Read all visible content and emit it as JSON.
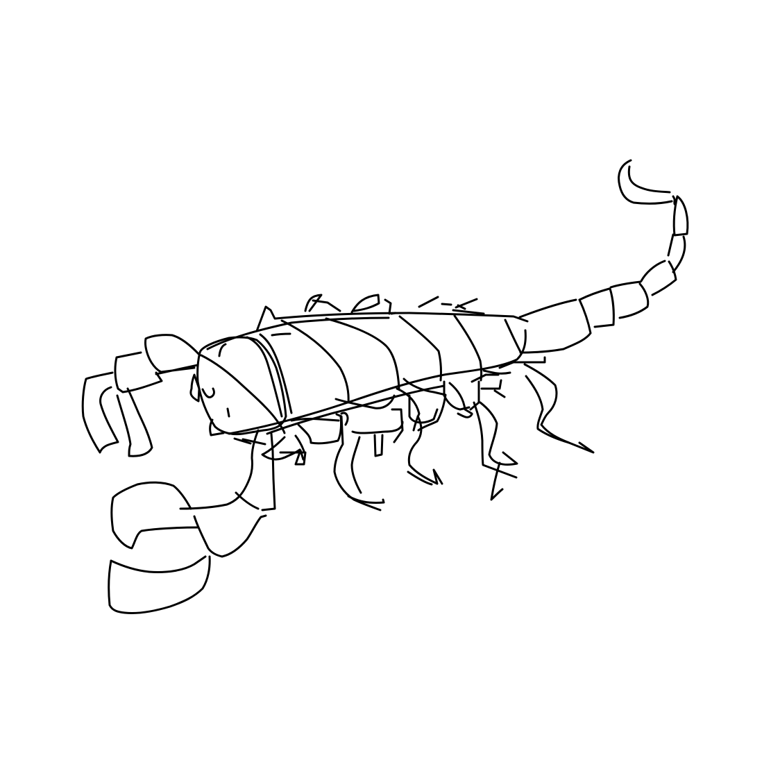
{
  "image": {
    "subject_icon": "scorpion-sketch-icon",
    "style": "black line drawing on white background",
    "colors": {
      "background": "#ffffff",
      "ink": "#000000"
    }
  }
}
